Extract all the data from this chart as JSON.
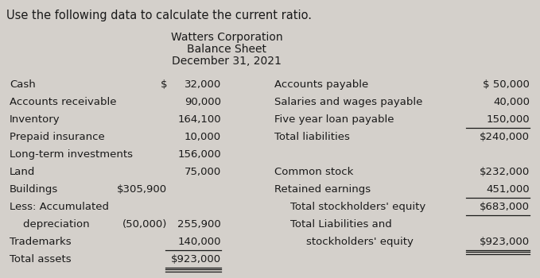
{
  "background_color": "#d4d0cb",
  "top_instruction": "Use the following data to calculate the current ratio.",
  "header_line1": "Watters Corporation",
  "header_line2": "Balance Sheet",
  "header_line3": "December 31, 2021",
  "left_items": [
    {
      "label": "Cash",
      "col1": "$",
      "col2": "32,000",
      "underline": false,
      "bold_label": false
    },
    {
      "label": "Accounts receivable",
      "col1": "",
      "col2": "90,000",
      "underline": false,
      "bold_label": false
    },
    {
      "label": "Inventory",
      "col1": "",
      "col2": "164,100",
      "underline": false,
      "bold_label": false
    },
    {
      "label": "Prepaid insurance",
      "col1": "",
      "col2": "10,000",
      "underline": false,
      "bold_label": false
    },
    {
      "label": "Long-term investments",
      "col1": "",
      "col2": "156,000",
      "underline": false,
      "bold_label": false
    },
    {
      "label": "Land",
      "col1": "",
      "col2": "75,000",
      "underline": false,
      "bold_label": false
    },
    {
      "label": "Buildings",
      "col1": "$305,900",
      "col2": "",
      "underline": false,
      "bold_label": false
    },
    {
      "label": "Less: Accumulated",
      "col1": "",
      "col2": "",
      "underline": false,
      "bold_label": false
    },
    {
      "label": "    depreciation",
      "col1": "(50,000)",
      "col2": "255,900",
      "underline": false,
      "bold_label": false
    },
    {
      "label": "Trademarks",
      "col1": "",
      "col2": "140,000",
      "underline": true,
      "bold_label": false
    },
    {
      "label": "Total assets",
      "col1": "",
      "col2": "$923,000",
      "underline": true,
      "bold_label": false,
      "double_underline": true
    }
  ],
  "right_items": [
    {
      "label": "Accounts payable",
      "col2": "$ 50,000",
      "underline": false,
      "indent": 0
    },
    {
      "label": "Salaries and wages payable",
      "col2": "40,000",
      "underline": false,
      "indent": 0
    },
    {
      "label": "Five year loan payable",
      "col2": "150,000",
      "underline": true,
      "indent": 0
    },
    {
      "label": "Total liabilities",
      "col2": "$240,000",
      "underline": false,
      "indent": 0
    },
    {
      "label": "",
      "col2": "",
      "underline": false,
      "indent": 0
    },
    {
      "label": "Common stock",
      "col2": "$232,000",
      "underline": false,
      "indent": 0
    },
    {
      "label": "Retained earnings",
      "col2": "451,000",
      "underline": true,
      "indent": 0
    },
    {
      "label": "Total stockholders' equity",
      "col2": "$683,000",
      "underline": true,
      "indent": 1
    },
    {
      "label": "Total Liabilities and",
      "col2": "",
      "underline": false,
      "indent": 1
    },
    {
      "label": "stockholders' equity",
      "col2": "$923,000",
      "underline": true,
      "indent": 2,
      "double_underline": true
    }
  ],
  "font_size": 9.5,
  "header_font_size": 10.0,
  "instruction_font_size": 10.5
}
